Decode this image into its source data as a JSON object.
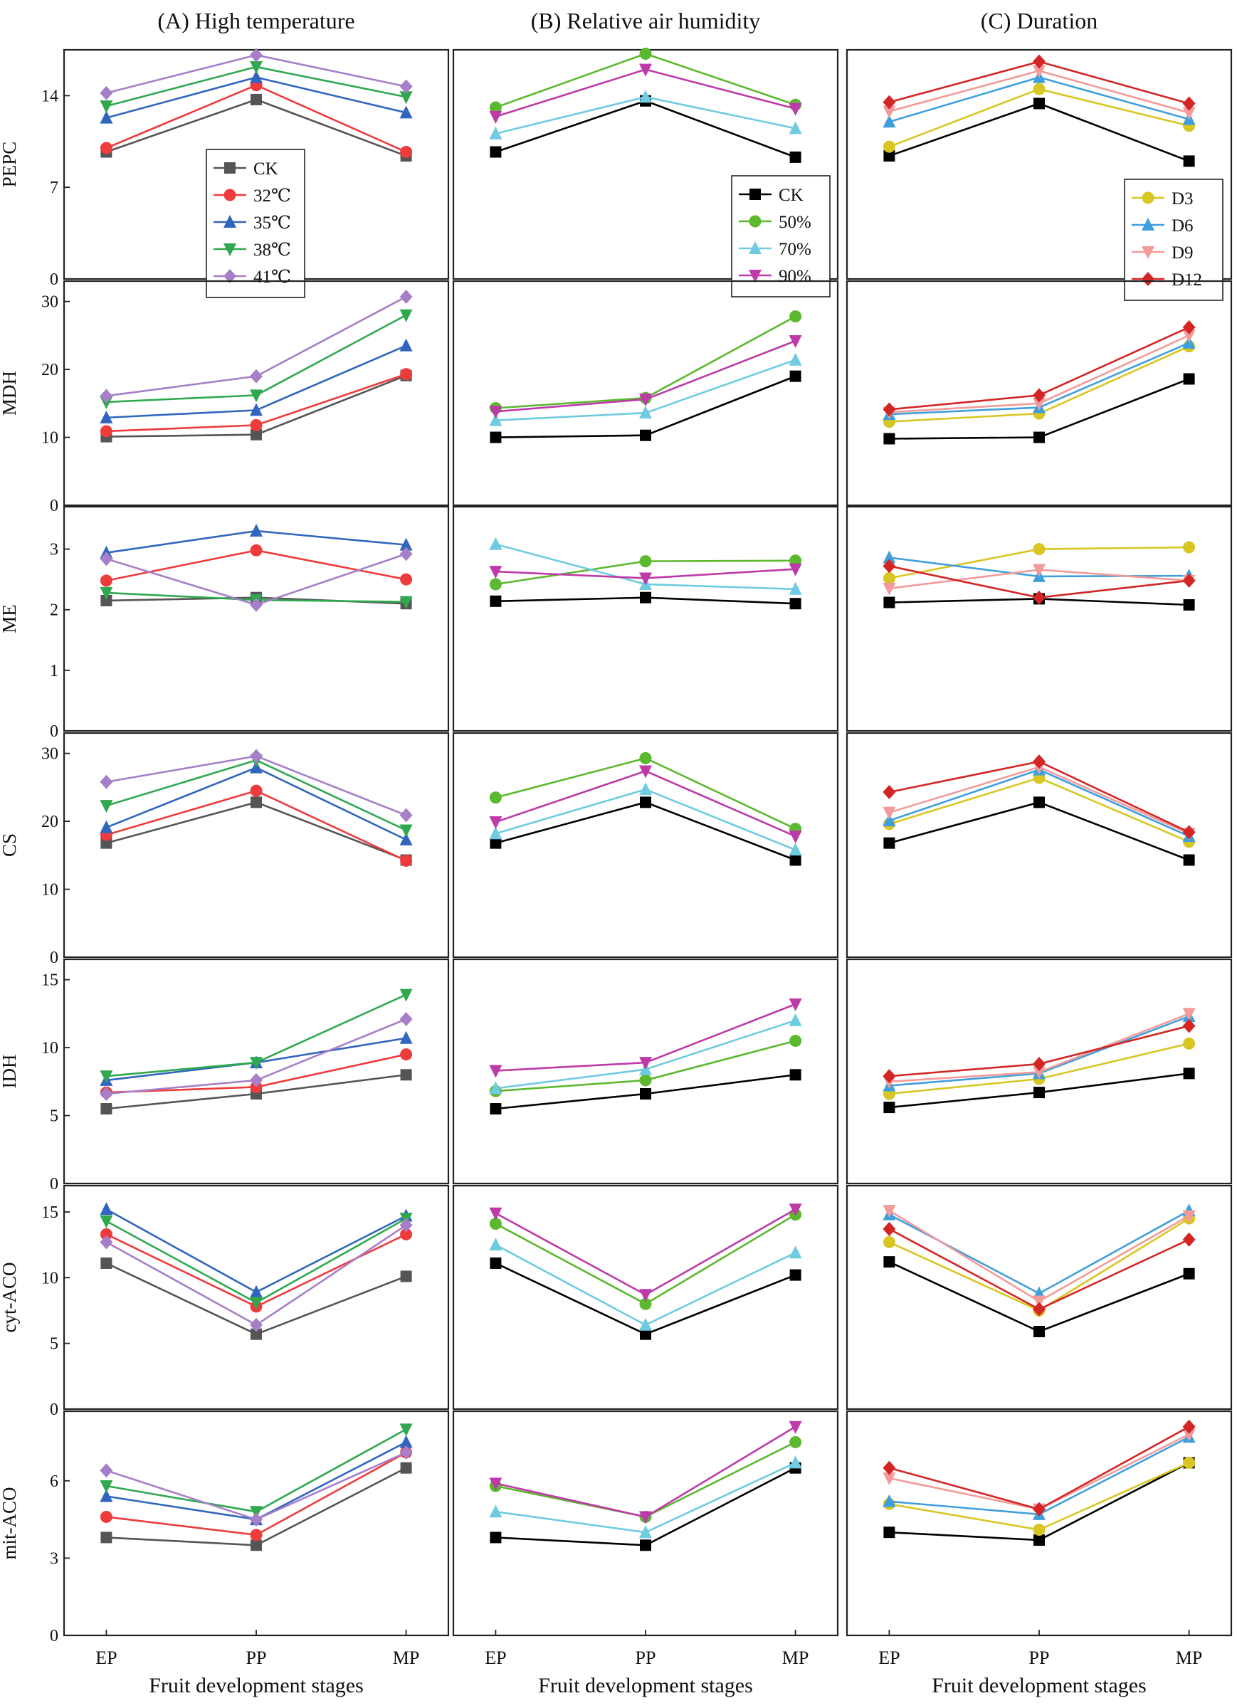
{
  "chart_data": {
    "type": "line",
    "categories": [
      "EP",
      "PP",
      "MP"
    ],
    "columns": [
      {
        "title": "(A) High temperature",
        "xlabel": "Fruit development stages",
        "legend_panel": "PEPC",
        "legend_placement": "center",
        "series": [
          {
            "name": "CK",
            "color": "#555555",
            "marker": "square"
          },
          {
            "name": "32℃",
            "color": "#ee3b3b",
            "marker": "circle"
          },
          {
            "name": "35℃",
            "color": "#3066be",
            "marker": "triangle-up"
          },
          {
            "name": "38℃",
            "color": "#2fa84f",
            "marker": "triangle-down"
          },
          {
            "name": "41℃",
            "color": "#a67fc8",
            "marker": "diamond"
          }
        ]
      },
      {
        "title": "(B) Relative air humidity",
        "xlabel": "Fruit development stages",
        "legend_panel": "PEPC",
        "legend_placement": "right",
        "series": [
          {
            "name": "CK",
            "color": "#000000",
            "marker": "square"
          },
          {
            "name": "50%",
            "color": "#5cb82f",
            "marker": "circle"
          },
          {
            "name": "70%",
            "color": "#6fcbe0",
            "marker": "triangle-up"
          },
          {
            "name": "90%",
            "color": "#bd3aa8",
            "marker": "triangle-down"
          }
        ]
      },
      {
        "title": "(C) Duration",
        "xlabel": "Fruit development stages",
        "legend_panel": "PEPC",
        "legend_placement": "right",
        "series": [
          {
            "name": "CK",
            "color": "#000000",
            "marker": "square",
            "in_legend": false
          },
          {
            "name": "D3",
            "color": "#d8c622",
            "marker": "circle"
          },
          {
            "name": "D6",
            "color": "#3f9fdc",
            "marker": "triangle-up"
          },
          {
            "name": "D9",
            "color": "#f39a9a",
            "marker": "triangle-down"
          },
          {
            "name": "D12",
            "color": "#d42525",
            "marker": "diamond"
          }
        ]
      }
    ],
    "rows": [
      {
        "ylabel": "PEPC",
        "ylim": [
          0,
          17.5
        ],
        "yticks": [
          0,
          7,
          14
        ],
        "values": [
          [
            [
              9.7,
              13.7,
              9.4
            ],
            [
              10.0,
              14.8,
              9.7
            ],
            [
              12.3,
              15.4,
              12.7
            ],
            [
              13.2,
              16.2,
              13.9
            ],
            [
              14.2,
              17.1,
              14.7
            ]
          ],
          [
            [
              9.7,
              13.6,
              9.3
            ],
            [
              13.1,
              17.2,
              13.3
            ],
            [
              11.1,
              13.9,
              11.5
            ],
            [
              12.4,
              16.0,
              13.0
            ]
          ],
          [
            [
              9.4,
              13.4,
              9.0
            ],
            [
              10.1,
              14.5,
              11.7
            ],
            [
              12.0,
              15.4,
              12.2
            ],
            [
              12.8,
              15.9,
              12.7
            ],
            [
              13.5,
              16.6,
              13.4
            ]
          ]
        ]
      },
      {
        "ylabel": "MDH",
        "ylim": [
          0,
          33
        ],
        "yticks": [
          0,
          10,
          20,
          30
        ],
        "values": [
          [
            [
              10.1,
              10.4,
              19.1
            ],
            [
              10.9,
              11.8,
              19.3
            ],
            [
              12.9,
              14.0,
              23.5
            ],
            [
              15.2,
              16.2,
              28.0
            ],
            [
              16.1,
              19.0,
              30.7
            ]
          ],
          [
            [
              10.0,
              10.3,
              19.0
            ],
            [
              14.3,
              15.8,
              27.8
            ],
            [
              12.5,
              13.6,
              21.4
            ],
            [
              13.8,
              15.6,
              24.2
            ]
          ],
          [
            [
              9.8,
              10.0,
              18.6
            ],
            [
              12.3,
              13.5,
              23.4
            ],
            [
              13.4,
              14.4,
              23.9
            ],
            [
              13.7,
              15.0,
              25.0
            ],
            [
              14.1,
              16.2,
              26.2
            ]
          ]
        ]
      },
      {
        "ylabel": "ME",
        "ylim": [
          0,
          3.7
        ],
        "yticks": [
          0,
          1,
          2,
          3
        ],
        "values": [
          [
            [
              2.15,
              2.2,
              2.1
            ],
            [
              2.48,
              2.98,
              2.5
            ],
            [
              2.94,
              3.3,
              3.07
            ],
            [
              2.28,
              2.16,
              2.13
            ],
            [
              2.84,
              2.08,
              2.92
            ]
          ],
          [
            [
              2.14,
              2.2,
              2.1
            ],
            [
              2.42,
              2.8,
              2.81
            ],
            [
              3.08,
              2.42,
              2.34
            ],
            [
              2.63,
              2.52,
              2.67
            ]
          ],
          [
            [
              2.12,
              2.18,
              2.08
            ],
            [
              2.52,
              3.0,
              3.03
            ],
            [
              2.86,
              2.55,
              2.56
            ],
            [
              2.35,
              2.66,
              2.48
            ],
            [
              2.72,
              2.2,
              2.48
            ]
          ]
        ]
      },
      {
        "ylabel": "CS",
        "ylim": [
          0,
          33
        ],
        "yticks": [
          0,
          10,
          20,
          30
        ],
        "values": [
          [
            [
              16.8,
              22.8,
              14.3
            ],
            [
              18.0,
              24.5,
              14.2
            ],
            [
              19.1,
              27.9,
              17.3
            ],
            [
              22.3,
              29.0,
              18.7
            ],
            [
              25.8,
              29.6,
              20.9
            ]
          ],
          [
            [
              16.8,
              22.8,
              14.3
            ],
            [
              23.5,
              29.3,
              18.9
            ],
            [
              18.2,
              24.7,
              15.8
            ],
            [
              19.9,
              27.4,
              17.8
            ]
          ],
          [
            [
              16.8,
              22.8,
              14.3
            ],
            [
              19.6,
              26.4,
              17.0
            ],
            [
              20.1,
              27.6,
              17.8
            ],
            [
              21.3,
              28.0,
              18.2
            ],
            [
              24.3,
              28.8,
              18.4
            ]
          ]
        ]
      },
      {
        "ylabel": "IDH",
        "ylim": [
          0,
          16.5
        ],
        "yticks": [
          0,
          5,
          10,
          15
        ],
        "values": [
          [
            [
              5.5,
              6.6,
              8.0
            ],
            [
              6.7,
              7.1,
              9.5
            ],
            [
              7.6,
              8.9,
              10.7
            ],
            [
              7.9,
              8.9,
              13.9
            ],
            [
              6.6,
              7.6,
              12.1
            ]
          ],
          [
            [
              5.5,
              6.6,
              8.0
            ],
            [
              6.8,
              7.6,
              10.5
            ],
            [
              7.0,
              8.4,
              12.0
            ],
            [
              8.3,
              8.9,
              13.2
            ]
          ],
          [
            [
              5.6,
              6.7,
              8.1
            ],
            [
              6.6,
              7.7,
              10.3
            ],
            [
              7.2,
              8.1,
              12.3
            ],
            [
              7.5,
              8.2,
              12.5
            ],
            [
              7.9,
              8.8,
              11.6
            ]
          ]
        ]
      },
      {
        "ylabel": "cyt-ACO",
        "ylim": [
          0,
          17
        ],
        "yticks": [
          0,
          5,
          10,
          15
        ],
        "values": [
          [
            [
              11.1,
              5.7,
              10.1
            ],
            [
              13.3,
              7.8,
              13.3
            ],
            [
              15.2,
              8.9,
              14.7
            ],
            [
              14.3,
              8.1,
              14.5
            ],
            [
              12.7,
              6.4,
              14.0
            ]
          ],
          [
            [
              11.1,
              5.7,
              10.2
            ],
            [
              14.1,
              8.0,
              14.8
            ],
            [
              12.5,
              6.4,
              11.9
            ],
            [
              14.9,
              8.7,
              15.2
            ]
          ],
          [
            [
              11.2,
              5.9,
              10.3
            ],
            [
              12.7,
              7.5,
              14.5
            ],
            [
              14.8,
              8.8,
              15.1
            ],
            [
              15.1,
              8.2,
              14.7
            ],
            [
              13.7,
              7.6,
              12.9
            ]
          ]
        ]
      },
      {
        "ylabel": "mit-ACO",
        "ylim": [
          0,
          8.7
        ],
        "yticks": [
          0,
          3,
          6
        ],
        "values": [
          [
            [
              3.8,
              3.5,
              6.5
            ],
            [
              4.6,
              3.9,
              7.1
            ],
            [
              5.4,
              4.5,
              7.5
            ],
            [
              5.8,
              4.8,
              8.0
            ],
            [
              6.4,
              4.5,
              7.1
            ]
          ],
          [
            [
              3.8,
              3.5,
              6.5
            ],
            [
              5.8,
              4.6,
              7.5
            ],
            [
              4.8,
              4.0,
              6.7
            ],
            [
              5.9,
              4.6,
              8.1
            ]
          ],
          [
            [
              4.0,
              3.7,
              6.7
            ],
            [
              5.1,
              4.1,
              6.7
            ],
            [
              5.2,
              4.7,
              7.7
            ],
            [
              6.1,
              4.9,
              7.8
            ],
            [
              6.5,
              4.9,
              8.1
            ]
          ]
        ]
      }
    ]
  }
}
